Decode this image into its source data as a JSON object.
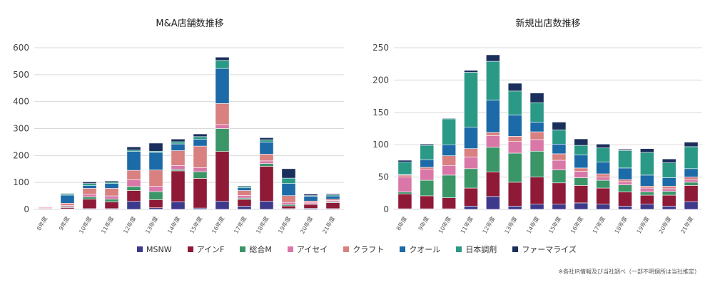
{
  "legend": [
    {
      "name": "MSNW",
      "color": "#3d3a8c"
    },
    {
      "name": "アインF",
      "color": "#8e1a38"
    },
    {
      "name": "総合M",
      "color": "#3a9667"
    },
    {
      "name": "アイセイ",
      "color": "#d978a8"
    },
    {
      "name": "クラフト",
      "color": "#d98080"
    },
    {
      "name": "クオール",
      "color": "#1c6aa8"
    },
    {
      "name": "日本調剤",
      "color": "#2a9a87"
    },
    {
      "name": "ファーマライズ",
      "color": "#1b2f5c"
    }
  ],
  "footnote": "※各社IR情報及び当社調べ（一部不明個所は当社推定）",
  "chart_data": [
    {
      "type": "bar",
      "stacked": true,
      "title": "M&A店舗数推移",
      "xlabel": "",
      "ylabel": "",
      "ylim": [
        0,
        600
      ],
      "yticks": [
        0,
        100,
        200,
        300,
        400,
        500,
        600
      ],
      "grid": true,
      "categories": [
        "8年度",
        "9年度",
        "10年度",
        "11年度",
        "12年度",
        "13年度",
        "14年度",
        "15年度",
        "16年度",
        "17年度",
        "18年度",
        "19年度",
        "20年度",
        "21年度"
      ],
      "series": [
        {
          "name": "MSNW",
          "values": [
            1,
            2,
            3,
            3,
            30,
            6,
            28,
            5,
            30,
            12,
            30,
            3,
            4,
            3
          ]
        },
        {
          "name": "アインF",
          "values": [
            3,
            5,
            35,
            25,
            40,
            30,
            115,
            110,
            185,
            25,
            130,
            10,
            15,
            22
          ]
        },
        {
          "name": "総合M",
          "values": [
            1,
            3,
            8,
            10,
            15,
            30,
            5,
            25,
            85,
            5,
            10,
            5,
            2,
            3
          ]
        },
        {
          "name": "アイセイ",
          "values": [
            3,
            5,
            10,
            12,
            25,
            20,
            15,
            15,
            15,
            10,
            10,
            8,
            5,
            5
          ]
        },
        {
          "name": "クラフト",
          "values": [
            2,
            8,
            22,
            28,
            35,
            60,
            55,
            80,
            78,
            18,
            25,
            25,
            5,
            5
          ]
        },
        {
          "name": "クオール",
          "values": [
            1,
            30,
            10,
            18,
            70,
            65,
            25,
            25,
            130,
            10,
            45,
            45,
            18,
            12
          ]
        },
        {
          "name": "日本調剤",
          "values": [
            1,
            5,
            8,
            6,
            5,
            5,
            8,
            10,
            30,
            5,
            8,
            20,
            2,
            4
          ]
        },
        {
          "name": "ファーマライズ",
          "values": [
            0,
            2,
            6,
            4,
            12,
            30,
            10,
            10,
            12,
            3,
            8,
            35,
            6,
            4
          ]
        }
      ]
    },
    {
      "type": "bar",
      "stacked": true,
      "title": "新規出店数推移",
      "xlabel": "",
      "ylabel": "",
      "ylim": [
        0,
        250
      ],
      "yticks": [
        0,
        50,
        100,
        150,
        200,
        250
      ],
      "grid": true,
      "categories": [
        "8年度",
        "9年度",
        "10年度",
        "11年度",
        "12年度",
        "13年度",
        "14年度",
        "15年度",
        "16年度",
        "17年度",
        "18年度",
        "19年度",
        "20年度",
        "21年度"
      ],
      "series": [
        {
          "name": "MSNW",
          "values": [
            1,
            1,
            1,
            5,
            20,
            5,
            8,
            8,
            10,
            8,
            5,
            8,
            5,
            12
          ]
        },
        {
          "name": "アインF",
          "values": [
            23,
            20,
            17,
            28,
            38,
            37,
            42,
            33,
            27,
            25,
            22,
            14,
            17,
            25
          ]
        },
        {
          "name": "総合M",
          "values": [
            3,
            24,
            35,
            30,
            38,
            45,
            40,
            20,
            12,
            12,
            11,
            5,
            6,
            5
          ]
        },
        {
          "name": "アイセイ",
          "values": [
            23,
            17,
            15,
            18,
            18,
            18,
            18,
            15,
            10,
            5,
            5,
            6,
            4,
            4
          ]
        },
        {
          "name": "クラフト",
          "values": [
            3,
            3,
            15,
            13,
            5,
            8,
            12,
            10,
            5,
            5,
            3,
            3,
            4,
            4
          ]
        },
        {
          "name": "クオール",
          "values": [
            1,
            12,
            17,
            33,
            50,
            33,
            15,
            15,
            20,
            18,
            18,
            17,
            13,
            13
          ]
        },
        {
          "name": "日本調剤",
          "values": [
            19,
            22,
            40,
            85,
            60,
            37,
            30,
            22,
            15,
            22,
            27,
            35,
            23,
            34
          ]
        },
        {
          "name": "ファーマライズ",
          "values": [
            3,
            2,
            1,
            3,
            10,
            12,
            15,
            12,
            10,
            6,
            2,
            6,
            6,
            7
          ]
        }
      ]
    }
  ]
}
